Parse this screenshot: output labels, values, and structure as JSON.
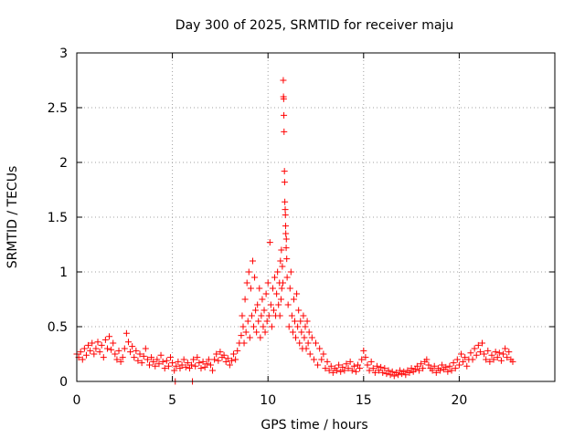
{
  "chart_data": {
    "type": "scatter",
    "title": "Day 300 of 2025, SRMTID for receiver maju",
    "xlabel": "GPS time / hours",
    "ylabel": "SRMTID / TECUs",
    "xlim": [
      0,
      25
    ],
    "ylim": [
      0,
      3
    ],
    "xticks": [
      0,
      5,
      10,
      15,
      20
    ],
    "xtick_labels": [
      "0",
      "5",
      "10",
      "15",
      "20"
    ],
    "yticks": [
      0,
      0.5,
      1,
      1.5,
      2,
      2.5,
      3
    ],
    "ytick_labels": [
      "0",
      "0.5",
      "1",
      "1.5",
      "2",
      "2.5",
      "3"
    ],
    "grid": true,
    "marker": "+",
    "series_color": "#ff0000",
    "series": [
      {
        "name": "SRMTID",
        "points": [
          [
            0.0,
            0.25
          ],
          [
            0.1,
            0.22
          ],
          [
            0.2,
            0.27
          ],
          [
            0.3,
            0.2
          ],
          [
            0.4,
            0.3
          ],
          [
            0.5,
            0.24
          ],
          [
            0.6,
            0.33
          ],
          [
            0.7,
            0.28
          ],
          [
            0.8,
            0.35
          ],
          [
            0.9,
            0.25
          ],
          [
            1.0,
            0.3
          ],
          [
            1.1,
            0.36
          ],
          [
            1.2,
            0.27
          ],
          [
            1.3,
            0.33
          ],
          [
            1.4,
            0.22
          ],
          [
            1.5,
            0.38
          ],
          [
            1.6,
            0.3
          ],
          [
            1.7,
            0.41
          ],
          [
            1.8,
            0.29
          ],
          [
            1.9,
            0.35
          ],
          [
            2.0,
            0.25
          ],
          [
            2.1,
            0.2
          ],
          [
            2.2,
            0.28
          ],
          [
            2.3,
            0.18
          ],
          [
            2.4,
            0.22
          ],
          [
            2.5,
            0.3
          ],
          [
            2.6,
            0.44
          ],
          [
            2.7,
            0.36
          ],
          [
            2.8,
            0.27
          ],
          [
            2.9,
            0.32
          ],
          [
            3.0,
            0.22
          ],
          [
            3.1,
            0.28
          ],
          [
            3.2,
            0.19
          ],
          [
            3.3,
            0.25
          ],
          [
            3.4,
            0.17
          ],
          [
            3.5,
            0.23
          ],
          [
            3.6,
            0.3
          ],
          [
            3.7,
            0.2
          ],
          [
            3.8,
            0.15
          ],
          [
            3.9,
            0.22
          ],
          [
            4.0,
            0.18
          ],
          [
            4.1,
            0.14
          ],
          [
            4.2,
            0.2
          ],
          [
            4.3,
            0.16
          ],
          [
            4.4,
            0.24
          ],
          [
            4.5,
            0.18
          ],
          [
            4.6,
            0.12
          ],
          [
            4.7,
            0.19
          ],
          [
            4.8,
            0.14
          ],
          [
            4.9,
            0.22
          ],
          [
            5.0,
            0.17
          ],
          [
            5.1,
            0.1
          ],
          [
            5.15,
            0.0
          ],
          [
            5.2,
            0.14
          ],
          [
            5.3,
            0.18
          ],
          [
            5.4,
            0.12
          ],
          [
            5.5,
            0.15
          ],
          [
            5.6,
            0.2
          ],
          [
            5.7,
            0.13
          ],
          [
            5.8,
            0.17
          ],
          [
            5.9,
            0.12
          ],
          [
            6.0,
            0.15
          ],
          [
            6.05,
            0.0
          ],
          [
            6.1,
            0.2
          ],
          [
            6.2,
            0.14
          ],
          [
            6.3,
            0.22
          ],
          [
            6.4,
            0.17
          ],
          [
            6.5,
            0.12
          ],
          [
            6.6,
            0.18
          ],
          [
            6.7,
            0.13
          ],
          [
            6.8,
            0.16
          ],
          [
            6.9,
            0.2
          ],
          [
            7.0,
            0.15
          ],
          [
            7.1,
            0.1
          ],
          [
            7.2,
            0.2
          ],
          [
            7.3,
            0.25
          ],
          [
            7.4,
            0.19
          ],
          [
            7.5,
            0.27
          ],
          [
            7.6,
            0.22
          ],
          [
            7.7,
            0.24
          ],
          [
            7.8,
            0.18
          ],
          [
            7.9,
            0.21
          ],
          [
            8.0,
            0.15
          ],
          [
            8.1,
            0.19
          ],
          [
            8.2,
            0.25
          ],
          [
            8.3,
            0.2
          ],
          [
            8.4,
            0.28
          ],
          [
            8.5,
            0.35
          ],
          [
            8.6,
            0.42
          ],
          [
            8.65,
            0.6
          ],
          [
            8.7,
            0.5
          ],
          [
            8.75,
            0.35
          ],
          [
            8.8,
            0.75
          ],
          [
            8.85,
            0.45
          ],
          [
            8.9,
            0.9
          ],
          [
            8.95,
            0.55
          ],
          [
            9.0,
            1.0
          ],
          [
            9.05,
            0.4
          ],
          [
            9.1,
            0.85
          ],
          [
            9.15,
            0.6
          ],
          [
            9.2,
            1.1
          ],
          [
            9.25,
            0.5
          ],
          [
            9.3,
            0.95
          ],
          [
            9.35,
            0.65
          ],
          [
            9.4,
            0.45
          ],
          [
            9.45,
            0.7
          ],
          [
            9.5,
            0.55
          ],
          [
            9.55,
            0.85
          ],
          [
            9.6,
            0.4
          ],
          [
            9.65,
            0.6
          ],
          [
            9.7,
            0.75
          ],
          [
            9.75,
            0.5
          ],
          [
            9.8,
            0.65
          ],
          [
            9.85,
            0.45
          ],
          [
            9.9,
            0.8
          ],
          [
            9.95,
            0.55
          ],
          [
            10.0,
            0.9
          ],
          [
            10.05,
            0.6
          ],
          [
            10.1,
            1.27
          ],
          [
            10.15,
            0.7
          ],
          [
            10.2,
            0.5
          ],
          [
            10.25,
            0.85
          ],
          [
            10.3,
            0.65
          ],
          [
            10.35,
            0.95
          ],
          [
            10.4,
            0.6
          ],
          [
            10.45,
            0.8
          ],
          [
            10.5,
            1.0
          ],
          [
            10.55,
            0.7
          ],
          [
            10.6,
            0.9
          ],
          [
            10.62,
            0.6
          ],
          [
            10.65,
            1.1
          ],
          [
            10.68,
            0.75
          ],
          [
            10.7,
            1.2
          ],
          [
            10.72,
            0.85
          ],
          [
            10.75,
            1.05
          ],
          [
            10.78,
            0.9
          ],
          [
            10.8,
            2.75
          ],
          [
            10.81,
            2.6
          ],
          [
            10.82,
            2.58
          ],
          [
            10.83,
            2.43
          ],
          [
            10.84,
            2.28
          ],
          [
            10.86,
            1.92
          ],
          [
            10.87,
            1.82
          ],
          [
            10.88,
            1.64
          ],
          [
            10.9,
            1.57
          ],
          [
            10.91,
            1.52
          ],
          [
            10.92,
            1.42
          ],
          [
            10.93,
            1.35
          ],
          [
            10.95,
            1.22
          ],
          [
            10.96,
            1.3
          ],
          [
            10.98,
            1.12
          ],
          [
            11.0,
            0.95
          ],
          [
            11.05,
            0.7
          ],
          [
            11.1,
            0.5
          ],
          [
            11.15,
            0.85
          ],
          [
            11.2,
            1.0
          ],
          [
            11.25,
            0.6
          ],
          [
            11.3,
            0.45
          ],
          [
            11.35,
            0.75
          ],
          [
            11.4,
            0.55
          ],
          [
            11.45,
            0.4
          ],
          [
            11.5,
            0.8
          ],
          [
            11.55,
            0.5
          ],
          [
            11.6,
            0.65
          ],
          [
            11.65,
            0.35
          ],
          [
            11.7,
            0.55
          ],
          [
            11.75,
            0.45
          ],
          [
            11.8,
            0.3
          ],
          [
            11.85,
            0.6
          ],
          [
            11.9,
            0.4
          ],
          [
            11.95,
            0.5
          ],
          [
            12.0,
            0.3
          ],
          [
            12.05,
            0.55
          ],
          [
            12.1,
            0.35
          ],
          [
            12.15,
            0.45
          ],
          [
            12.2,
            0.25
          ],
          [
            12.3,
            0.4
          ],
          [
            12.4,
            0.2
          ],
          [
            12.5,
            0.35
          ],
          [
            12.6,
            0.15
          ],
          [
            12.7,
            0.3
          ],
          [
            12.8,
            0.2
          ],
          [
            12.9,
            0.25
          ],
          [
            13.0,
            0.12
          ],
          [
            13.1,
            0.18
          ],
          [
            13.2,
            0.1
          ],
          [
            13.3,
            0.14
          ],
          [
            13.4,
            0.08
          ],
          [
            13.5,
            0.12
          ],
          [
            13.6,
            0.1
          ],
          [
            13.7,
            0.15
          ],
          [
            13.8,
            0.09
          ],
          [
            13.9,
            0.13
          ],
          [
            14.0,
            0.1
          ],
          [
            14.1,
            0.16
          ],
          [
            14.2,
            0.12
          ],
          [
            14.3,
            0.18
          ],
          [
            14.4,
            0.1
          ],
          [
            14.5,
            0.14
          ],
          [
            14.6,
            0.09
          ],
          [
            14.7,
            0.15
          ],
          [
            14.8,
            0.12
          ],
          [
            14.9,
            0.2
          ],
          [
            15.0,
            0.28
          ],
          [
            15.1,
            0.22
          ],
          [
            15.2,
            0.15
          ],
          [
            15.3,
            0.1
          ],
          [
            15.4,
            0.18
          ],
          [
            15.5,
            0.12
          ],
          [
            15.6,
            0.08
          ],
          [
            15.7,
            0.14
          ],
          [
            15.8,
            0.1
          ],
          [
            15.9,
            0.13
          ],
          [
            16.0,
            0.08
          ],
          [
            16.1,
            0.12
          ],
          [
            16.2,
            0.07
          ],
          [
            16.3,
            0.1
          ],
          [
            16.4,
            0.06
          ],
          [
            16.5,
            0.09
          ],
          [
            16.6,
            0.05
          ],
          [
            16.7,
            0.08
          ],
          [
            16.8,
            0.06
          ],
          [
            16.9,
            0.1
          ],
          [
            17.0,
            0.07
          ],
          [
            17.1,
            0.09
          ],
          [
            17.2,
            0.06
          ],
          [
            17.3,
            0.1
          ],
          [
            17.4,
            0.08
          ],
          [
            17.5,
            0.12
          ],
          [
            17.6,
            0.09
          ],
          [
            17.7,
            0.11
          ],
          [
            17.8,
            0.14
          ],
          [
            17.9,
            0.1
          ],
          [
            18.0,
            0.16
          ],
          [
            18.1,
            0.12
          ],
          [
            18.2,
            0.18
          ],
          [
            18.3,
            0.2
          ],
          [
            18.4,
            0.15
          ],
          [
            18.5,
            0.12
          ],
          [
            18.6,
            0.1
          ],
          [
            18.7,
            0.14
          ],
          [
            18.8,
            0.08
          ],
          [
            18.9,
            0.12
          ],
          [
            19.0,
            0.1
          ],
          [
            19.1,
            0.15
          ],
          [
            19.2,
            0.11
          ],
          [
            19.3,
            0.13
          ],
          [
            19.4,
            0.09
          ],
          [
            19.5,
            0.14
          ],
          [
            19.6,
            0.1
          ],
          [
            19.7,
            0.17
          ],
          [
            19.8,
            0.12
          ],
          [
            19.9,
            0.2
          ],
          [
            20.0,
            0.15
          ],
          [
            20.1,
            0.25
          ],
          [
            20.2,
            0.18
          ],
          [
            20.3,
            0.22
          ],
          [
            20.4,
            0.14
          ],
          [
            20.5,
            0.2
          ],
          [
            20.6,
            0.26
          ],
          [
            20.7,
            0.2
          ],
          [
            20.8,
            0.3
          ],
          [
            20.9,
            0.24
          ],
          [
            21.0,
            0.33
          ],
          [
            21.1,
            0.27
          ],
          [
            21.2,
            0.35
          ],
          [
            21.3,
            0.25
          ],
          [
            21.4,
            0.2
          ],
          [
            21.5,
            0.28
          ],
          [
            21.6,
            0.18
          ],
          [
            21.7,
            0.24
          ],
          [
            21.8,
            0.2
          ],
          [
            21.9,
            0.27
          ],
          [
            22.0,
            0.22
          ],
          [
            22.1,
            0.26
          ],
          [
            22.2,
            0.19
          ],
          [
            22.3,
            0.25
          ],
          [
            22.4,
            0.3
          ],
          [
            22.5,
            0.22
          ],
          [
            22.6,
            0.27
          ],
          [
            22.7,
            0.2
          ],
          [
            22.8,
            0.18
          ]
        ]
      }
    ]
  }
}
